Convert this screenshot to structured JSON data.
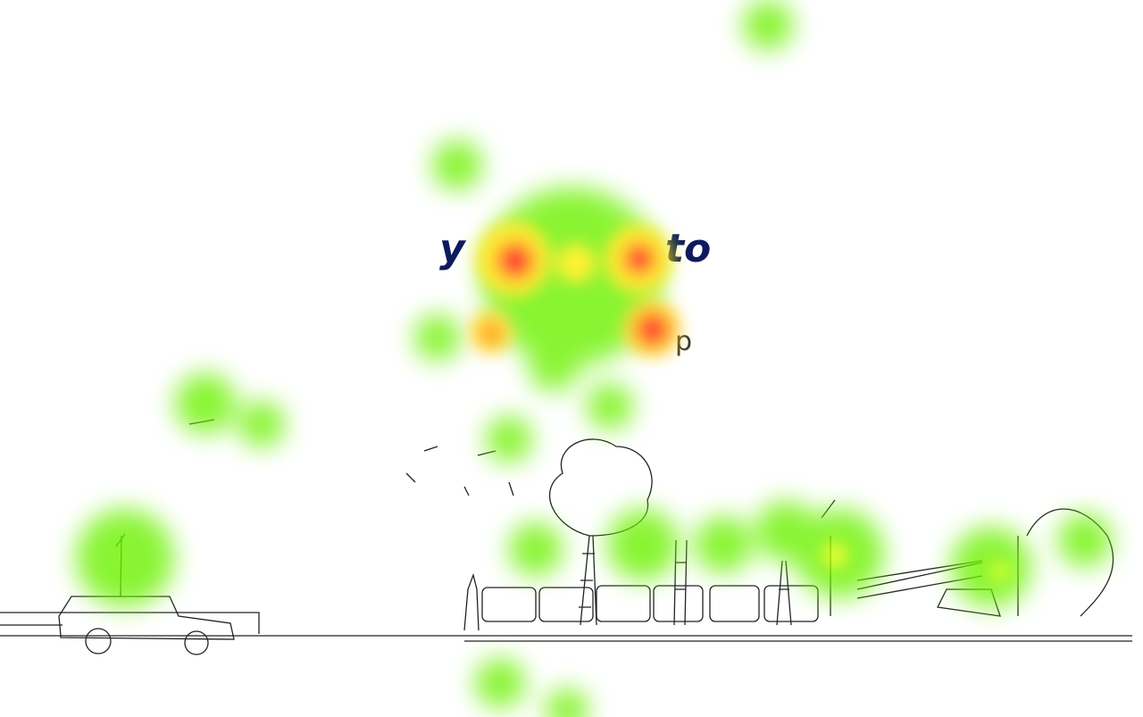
{
  "heading_fragments": [
    "y",
    "to"
  ],
  "line_fragment": "p"
}
